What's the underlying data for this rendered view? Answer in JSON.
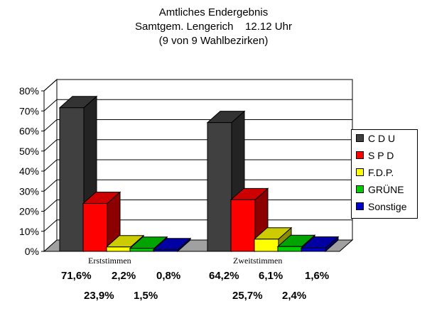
{
  "title": [
    "Amtliches Endergebnis",
    "Samtgem. Lengerich    12.12 Uhr",
    "(9 von 9 Wahlbezirken)"
  ],
  "chart_data": {
    "type": "bar",
    "categories": [
      "Erststimmen",
      "Zweitstimmen"
    ],
    "series": [
      {
        "name": "C D U",
        "color": "#404040",
        "values": [
          71.6,
          64.2
        ]
      },
      {
        "name": "S P D",
        "color": "#ff0000",
        "values": [
          23.9,
          25.7
        ]
      },
      {
        "name": "F.D.P.",
        "color": "#ffff00",
        "values": [
          2.2,
          6.1
        ]
      },
      {
        "name": "GRÜNE",
        "color": "#00cc00",
        "values": [
          1.5,
          2.4
        ]
      },
      {
        "name": "Sonstige",
        "color": "#0000cc",
        "values": [
          0.8,
          1.6
        ]
      }
    ],
    "ylim": [
      0,
      80
    ],
    "yticks": [
      "0%",
      "10%",
      "20%",
      "30%",
      "40%",
      "50%",
      "60%",
      "70%",
      "80%"
    ],
    "legend_position": "right",
    "grid": true
  },
  "value_rows": {
    "erst_row1": [
      "71,6%",
      "2,2%",
      "0,8%"
    ],
    "erst_row2": [
      "23,9%",
      "1,5%"
    ],
    "zweit_row1": [
      "64,2%",
      "6,1%",
      "1,6%"
    ],
    "zweit_row2": [
      "25,7%",
      "2,4%"
    ]
  }
}
